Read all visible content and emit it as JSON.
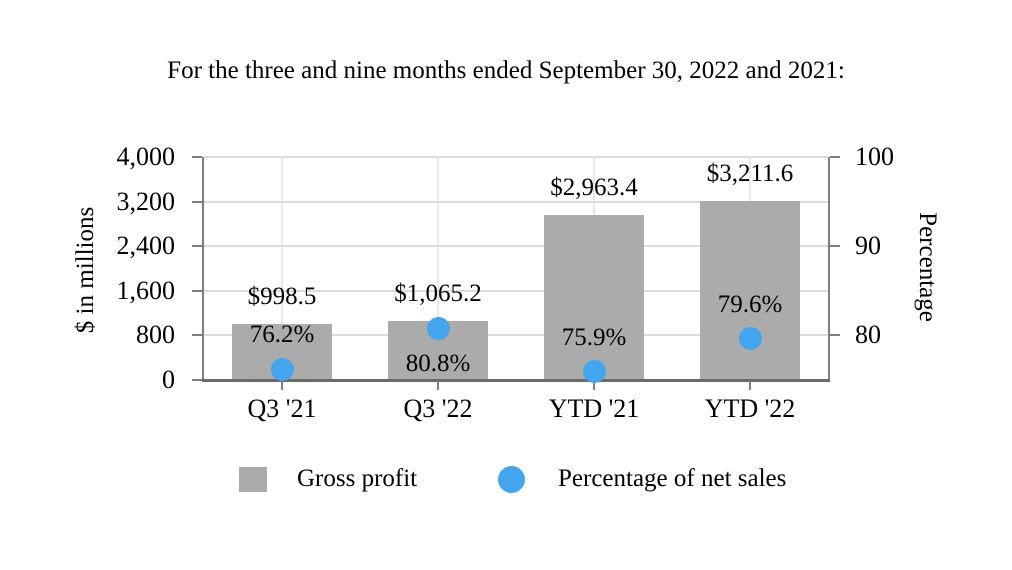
{
  "title": "For the three and nine months ended September 30, 2022 and 2021:",
  "chart_data": {
    "type": "bar",
    "subtype": "bar-and-scatter-combo",
    "title": "For the three and nine months ended September 30, 2022 and 2021:",
    "categories": [
      "Q3 '21",
      "Q3 '22",
      "YTD '21",
      "YTD '22"
    ],
    "series": [
      {
        "name": "Gross profit",
        "marker": "bar",
        "axis": "left",
        "values": [
          998.5,
          1065.2,
          2963.4,
          3211.6
        ],
        "labels": [
          "$998.5",
          "$1,065.2",
          "$2,963.4",
          "$3,211.6"
        ],
        "color": "#ABABAB"
      },
      {
        "name": "Percentage of net sales",
        "marker": "circle",
        "axis": "right",
        "values": [
          76.2,
          80.8,
          75.9,
          79.6
        ],
        "labels": [
          "76.2%",
          "80.8%",
          "75.9%",
          "79.6%"
        ],
        "label_placement": [
          "above",
          "below",
          "above",
          "above"
        ],
        "color": "#42A5EE"
      }
    ],
    "left_axis": {
      "title": "$ in millions",
      "min": 0,
      "max": 4000,
      "tick_step": 800,
      "tick_values": [
        0,
        800,
        1600,
        2400,
        3200,
        4000
      ],
      "tick_labels": [
        "0",
        "800",
        "1,600",
        "2,400",
        "3,200",
        "4,000"
      ]
    },
    "right_axis": {
      "title": "Percentage",
      "min": 75,
      "max": 100,
      "grid_step": 5,
      "tick_values": [
        80,
        90,
        100
      ],
      "tick_labels": [
        "80",
        "90",
        "100"
      ]
    },
    "gridlines": {
      "horizontal": true,
      "vertical": true
    },
    "legend_position": "bottom"
  },
  "colors": {
    "bar": "#ABABAB",
    "marker": "#42A5EE",
    "horizontal_gridline": "#DCDCDC",
    "vertical_gridline": "#E7E7E7",
    "axis_line": "#7F7F7F",
    "bottom_axis_line": "#6A6A6A",
    "text": "#000000",
    "background": "#FFFFFF"
  }
}
